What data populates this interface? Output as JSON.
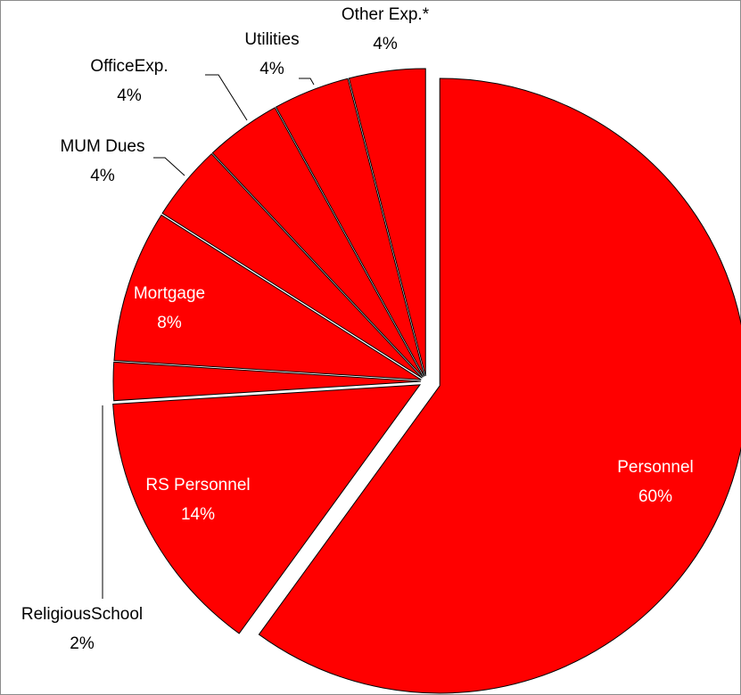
{
  "chart_data": {
    "type": "pie",
    "categories": [
      "Personnel",
      "RS Personnel",
      "ReligiousSchool",
      "Mortgage",
      "MUM Dues",
      "OfficeExp.",
      "Utilities",
      "Other Exp.*"
    ],
    "values": [
      60,
      14,
      2,
      8,
      4,
      4,
      4,
      4
    ],
    "value_labels": [
      "60%",
      "14%",
      "2%",
      "8%",
      "4%",
      "4%",
      "4%",
      "4%"
    ],
    "color": "#ff0000"
  }
}
